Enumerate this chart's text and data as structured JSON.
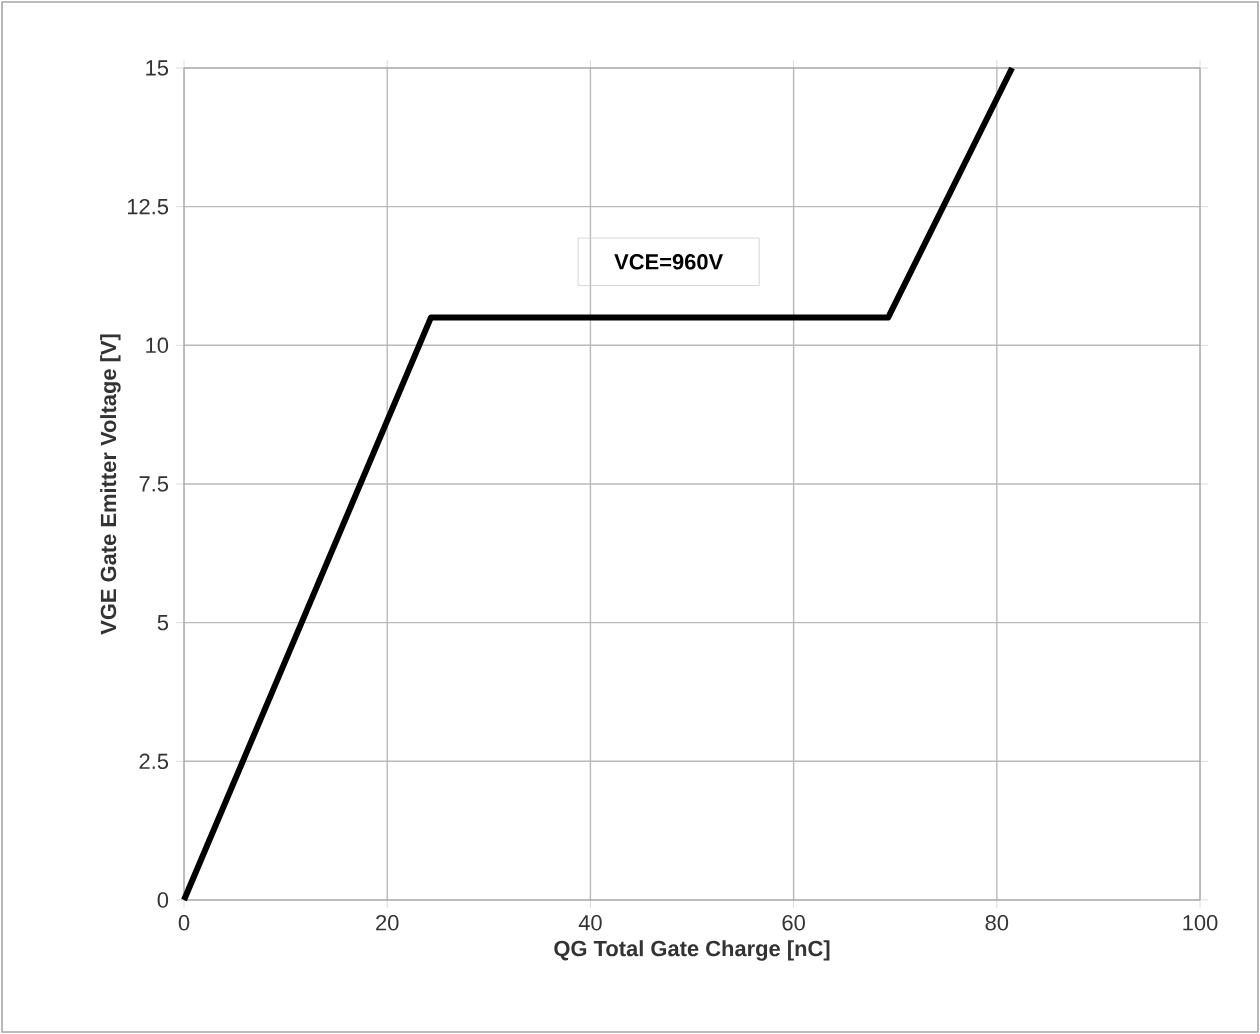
{
  "chart_data": {
    "type": "line",
    "xlabel": "QG Total Gate Charge [nC]",
    "ylabel": "VGE Gate Emitter Voltage [V]",
    "annotations": [
      "VCE=960V"
    ],
    "series": [
      {
        "color": "#000000",
        "x": [
          0,
          24.3,
          69.3,
          81.5
        ],
        "values": [
          0,
          10.5,
          10.5,
          15
        ]
      }
    ],
    "xlim": [
      0,
      100
    ],
    "xticks": [
      0,
      20,
      40,
      60,
      80,
      100
    ],
    "ylim": [
      0,
      15
    ],
    "yticks": [
      0,
      2.5,
      5,
      7.5,
      10,
      12.5,
      15
    ],
    "grid": true,
    "marker": "none",
    "line_style": "solid"
  }
}
